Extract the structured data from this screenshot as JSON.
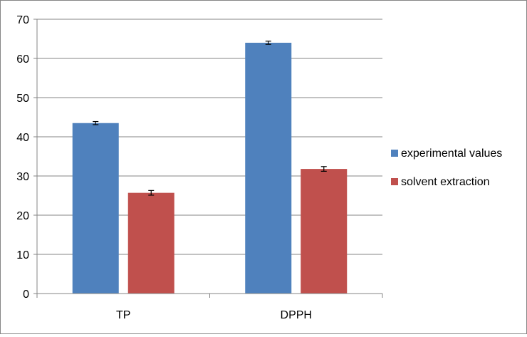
{
  "chart_data": {
    "type": "bar",
    "title": "",
    "xlabel": "",
    "ylabel": "",
    "categories": [
      "TP",
      "DPPH"
    ],
    "ylim": [
      0,
      70
    ],
    "yticks": [
      0,
      10,
      20,
      30,
      40,
      50,
      60,
      70
    ],
    "grid": true,
    "legend_position": "right",
    "series": [
      {
        "name": "experimental values",
        "color": "#4F81BD",
        "values": [
          43.5,
          64.0
        ],
        "errors": [
          0.4,
          0.4
        ]
      },
      {
        "name": "solvent extraction",
        "color": "#C0504D",
        "values": [
          25.7,
          31.8
        ],
        "errors": [
          0.6,
          0.6
        ]
      }
    ]
  }
}
